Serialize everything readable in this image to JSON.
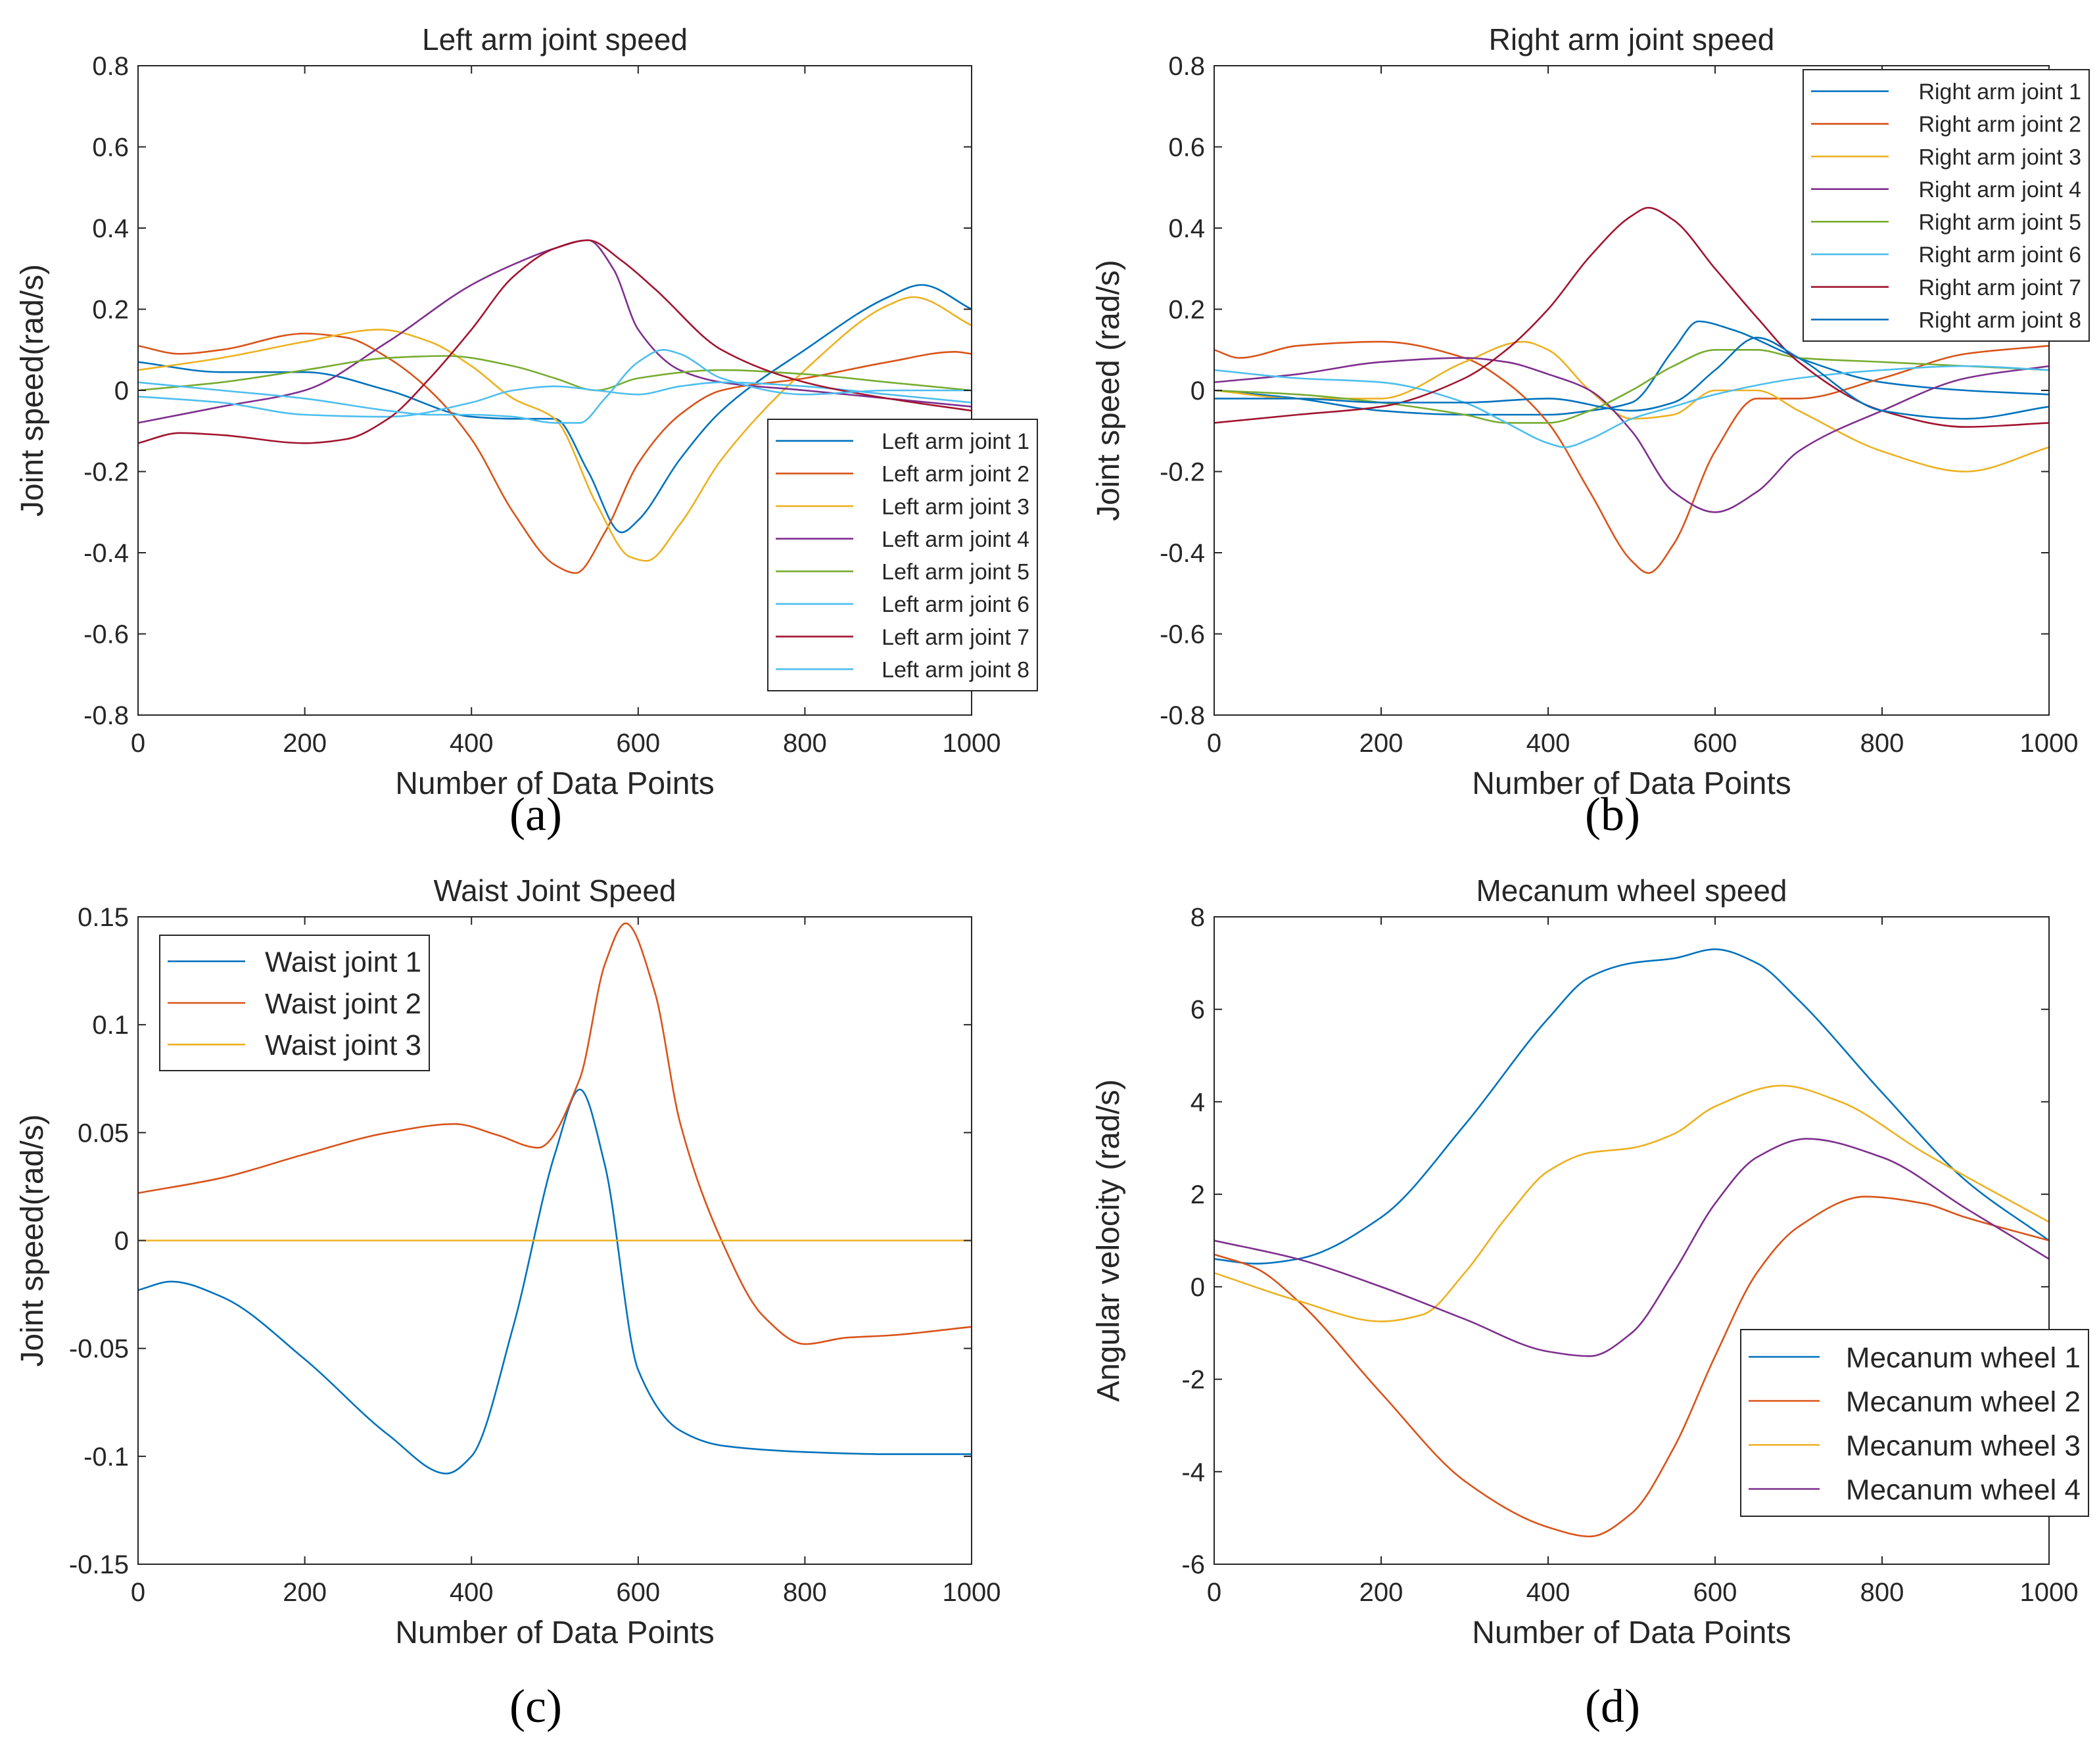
{
  "colors": {
    "c1": "#0072BD",
    "c2": "#D95319",
    "c3": "#EDB120",
    "c4": "#7E2F8E",
    "c5": "#77AC30",
    "c6": "#4DBEEE",
    "c7": "#A2142F",
    "axis": "#262626"
  },
  "chart_data": [
    {
      "id": "a",
      "type": "line",
      "caption": "(a)",
      "title": "Left arm joint speed",
      "xlabel": "Number of Data Points",
      "ylabel": "Joint speed(rad/s)",
      "xlim": [
        0,
        1000
      ],
      "ylim": [
        -0.8,
        0.8
      ],
      "xticks": [
        0,
        200,
        400,
        600,
        800,
        1000
      ],
      "yticks": [
        -0.8,
        -0.6,
        -0.4,
        -0.2,
        0,
        0.2,
        0.4,
        0.6,
        0.8
      ],
      "ytick_labels": [
        "-0.8",
        "-0.6",
        "-0.4",
        "-0.2",
        "0",
        "0.2",
        "0.4",
        "0.6",
        "0.8"
      ],
      "legend_location": "bottom-right",
      "series": [
        {
          "name": "Left arm joint 1",
          "color": "c1",
          "x": [
            0,
            100,
            200,
            300,
            400,
            450,
            500,
            540,
            580,
            600,
            650,
            700,
            800,
            900,
            940,
            1000
          ],
          "y": [
            0.07,
            0.045,
            0.045,
            0.0,
            -0.065,
            -0.07,
            -0.07,
            -0.2,
            -0.35,
            -0.32,
            -0.17,
            -0.05,
            0.1,
            0.23,
            0.26,
            0.2
          ]
        },
        {
          "name": "Left arm joint 2",
          "color": "c2",
          "x": [
            0,
            50,
            100,
            200,
            250,
            300,
            350,
            400,
            450,
            500,
            525,
            560,
            600,
            650,
            700,
            800,
            900,
            980,
            1000
          ],
          "y": [
            0.11,
            0.09,
            0.1,
            0.14,
            0.13,
            0.08,
            0.0,
            -0.12,
            -0.3,
            -0.43,
            -0.45,
            -0.35,
            -0.18,
            -0.06,
            0.0,
            0.03,
            0.07,
            0.095,
            0.09
          ]
        },
        {
          "name": "Left arm joint 3",
          "color": "c3",
          "x": [
            0,
            100,
            200,
            290,
            350,
            400,
            450,
            500,
            550,
            590,
            610,
            650,
            700,
            800,
            900,
            930,
            1000
          ],
          "y": [
            0.05,
            0.08,
            0.12,
            0.15,
            0.12,
            0.06,
            -0.02,
            -0.07,
            -0.28,
            -0.41,
            -0.42,
            -0.33,
            -0.17,
            0.05,
            0.21,
            0.23,
            0.16
          ]
        },
        {
          "name": "Left arm joint 4",
          "color": "c4",
          "x": [
            0,
            100,
            200,
            300,
            400,
            450,
            500,
            540,
            570,
            600,
            650,
            700,
            800,
            900,
            1000
          ],
          "y": [
            -0.08,
            -0.04,
            0.0,
            0.12,
            0.26,
            0.31,
            0.35,
            0.37,
            0.3,
            0.15,
            0.05,
            0.02,
            0.0,
            -0.02,
            -0.04
          ]
        },
        {
          "name": "Left arm joint 5",
          "color": "c5",
          "x": [
            0,
            100,
            200,
            300,
            370,
            450,
            500,
            550,
            600,
            700,
            800,
            900,
            1000
          ],
          "y": [
            0.0,
            0.02,
            0.05,
            0.08,
            0.085,
            0.06,
            0.03,
            0.0,
            0.03,
            0.05,
            0.04,
            0.02,
            0.0
          ]
        },
        {
          "name": "Left arm joint 6",
          "color": "c6",
          "x": [
            0,
            100,
            200,
            300,
            400,
            450,
            500,
            550,
            600,
            650,
            700,
            800,
            900,
            1000
          ],
          "y": [
            -0.015,
            -0.03,
            -0.06,
            -0.065,
            -0.03,
            0.0,
            0.01,
            0.0,
            -0.01,
            0.01,
            0.02,
            0.01,
            -0.01,
            -0.03
          ]
        },
        {
          "name": "Left arm joint 7",
          "color": "c7",
          "x": [
            0,
            50,
            100,
            200,
            250,
            300,
            350,
            400,
            450,
            500,
            540,
            580,
            620,
            700,
            800,
            900,
            1000
          ],
          "y": [
            -0.13,
            -0.105,
            -0.11,
            -0.13,
            -0.12,
            -0.07,
            0.03,
            0.15,
            0.28,
            0.35,
            0.37,
            0.32,
            0.25,
            0.1,
            0.02,
            -0.02,
            -0.05
          ]
        },
        {
          "name": "Left arm joint 8",
          "color": "c6",
          "x": [
            0,
            100,
            200,
            300,
            350,
            400,
            450,
            500,
            530,
            560,
            600,
            630,
            650,
            700,
            800,
            900,
            1000
          ],
          "y": [
            0.02,
            0.0,
            -0.02,
            -0.05,
            -0.06,
            -0.06,
            -0.065,
            -0.08,
            -0.08,
            -0.02,
            0.07,
            0.1,
            0.09,
            0.03,
            -0.01,
            0.0,
            0.0
          ]
        }
      ]
    },
    {
      "id": "b",
      "type": "line",
      "caption": "(b)",
      "title": "Right arm joint speed",
      "xlabel": "Number of Data Points",
      "ylabel": "Joint speed (rad/s)",
      "xlim": [
        0,
        1000
      ],
      "ylim": [
        -0.8,
        0.8
      ],
      "xticks": [
        0,
        200,
        400,
        600,
        800,
        1000
      ],
      "yticks": [
        -0.8,
        -0.6,
        -0.4,
        -0.2,
        0,
        0.2,
        0.4,
        0.6,
        0.8
      ],
      "ytick_labels": [
        "-0.8",
        "-0.6",
        "-0.4",
        "-0.2",
        "0",
        "0.2",
        "0.4",
        "0.6",
        "0.8"
      ],
      "legend_location": "top-right",
      "series": [
        {
          "name": "Right arm joint 1",
          "color": "c1",
          "x": [
            0,
            100,
            200,
            300,
            400,
            450,
            500,
            550,
            580,
            620,
            700,
            800,
            900,
            1000
          ],
          "y": [
            0.0,
            -0.02,
            -0.05,
            -0.06,
            -0.06,
            -0.05,
            -0.03,
            0.1,
            0.17,
            0.15,
            0.08,
            0.02,
            0.0,
            -0.01
          ]
        },
        {
          "name": "Right arm joint 2",
          "color": "c2",
          "x": [
            0,
            30,
            100,
            200,
            300,
            350,
            400,
            450,
            500,
            520,
            550,
            600,
            650,
            700,
            800,
            900,
            1000
          ],
          "y": [
            0.1,
            0.08,
            0.11,
            0.12,
            0.08,
            0.02,
            -0.08,
            -0.25,
            -0.42,
            -0.45,
            -0.38,
            -0.15,
            -0.02,
            -0.02,
            0.03,
            0.09,
            0.11
          ]
        },
        {
          "name": "Right arm joint 3",
          "color": "c3",
          "x": [
            0,
            100,
            200,
            300,
            370,
            400,
            450,
            500,
            550,
            600,
            650,
            700,
            800,
            900,
            1000
          ],
          "y": [
            0.0,
            -0.02,
            -0.02,
            0.07,
            0.12,
            0.1,
            0.0,
            -0.07,
            -0.06,
            0.0,
            0.0,
            -0.05,
            -0.15,
            -0.2,
            -0.14
          ]
        },
        {
          "name": "Right arm joint 4",
          "color": "c4",
          "x": [
            0,
            100,
            200,
            300,
            350,
            400,
            450,
            500,
            550,
            600,
            650,
            700,
            800,
            900,
            1000
          ],
          "y": [
            0.02,
            0.04,
            0.07,
            0.08,
            0.07,
            0.04,
            0.0,
            -0.1,
            -0.25,
            -0.3,
            -0.25,
            -0.15,
            -0.05,
            0.03,
            0.06
          ]
        },
        {
          "name": "Right arm joint 5",
          "color": "c5",
          "x": [
            0,
            100,
            200,
            300,
            350,
            400,
            450,
            500,
            550,
            600,
            650,
            700,
            800,
            900,
            1000
          ],
          "y": [
            0.0,
            -0.01,
            -0.03,
            -0.06,
            -0.08,
            -0.08,
            -0.05,
            0.0,
            0.06,
            0.1,
            0.1,
            0.08,
            0.07,
            0.06,
            0.05
          ]
        },
        {
          "name": "Right arm joint 6",
          "color": "c6",
          "x": [
            0,
            100,
            200,
            300,
            350,
            400,
            420,
            450,
            500,
            550,
            600,
            700,
            800,
            900,
            1000
          ],
          "y": [
            0.05,
            0.03,
            0.02,
            -0.03,
            -0.08,
            -0.13,
            -0.14,
            -0.12,
            -0.07,
            -0.04,
            -0.01,
            0.03,
            0.05,
            0.06,
            0.05
          ]
        },
        {
          "name": "Right arm joint 7",
          "color": "c7",
          "x": [
            0,
            100,
            200,
            300,
            350,
            400,
            450,
            500,
            520,
            550,
            600,
            650,
            700,
            800,
            900,
            1000
          ],
          "y": [
            -0.08,
            -0.06,
            -0.04,
            0.03,
            0.1,
            0.2,
            0.33,
            0.43,
            0.45,
            0.42,
            0.3,
            0.18,
            0.07,
            -0.05,
            -0.09,
            -0.08
          ]
        },
        {
          "name": "Right arm joint 8",
          "color": "c1",
          "x": [
            0,
            100,
            200,
            300,
            400,
            500,
            550,
            600,
            650,
            700,
            800,
            900,
            1000
          ],
          "y": [
            -0.02,
            -0.02,
            -0.03,
            -0.03,
            -0.02,
            -0.05,
            -0.03,
            0.05,
            0.13,
            0.08,
            -0.05,
            -0.07,
            -0.04
          ]
        }
      ]
    },
    {
      "id": "c",
      "type": "line",
      "caption": "(c)",
      "title": "Waist Joint Speed",
      "xlabel": "Number of Data Points",
      "ylabel": "Joint speed(rad/s)",
      "xlim": [
        0,
        1000
      ],
      "ylim": [
        -0.15,
        0.15
      ],
      "xticks": [
        0,
        200,
        400,
        600,
        800,
        1000
      ],
      "yticks": [
        -0.15,
        -0.1,
        -0.05,
        0,
        0.05,
        0.1,
        0.15
      ],
      "ytick_labels": [
        "-0.15",
        "-0.1",
        "-0.05",
        "0",
        "0.05",
        "0.1",
        "0.15"
      ],
      "legend_location": "top-left",
      "series": [
        {
          "name": "Waist joint 1",
          "color": "c1",
          "x": [
            0,
            40,
            100,
            200,
            300,
            370,
            400,
            450,
            500,
            530,
            560,
            600,
            650,
            700,
            800,
            900,
            1000
          ],
          "y": [
            -0.023,
            -0.019,
            -0.026,
            -0.055,
            -0.09,
            -0.108,
            -0.1,
            -0.04,
            0.04,
            0.07,
            0.035,
            -0.06,
            -0.088,
            -0.095,
            -0.098,
            -0.099,
            -0.099
          ]
        },
        {
          "name": "Waist joint 2",
          "color": "c2",
          "x": [
            0,
            100,
            200,
            300,
            380,
            430,
            480,
            530,
            560,
            585,
            620,
            650,
            700,
            750,
            800,
            850,
            900,
            1000
          ],
          "y": [
            0.022,
            0.029,
            0.04,
            0.05,
            0.054,
            0.049,
            0.043,
            0.075,
            0.128,
            0.147,
            0.115,
            0.055,
            0.0,
            -0.035,
            -0.048,
            -0.045,
            -0.044,
            -0.04
          ]
        },
        {
          "name": "Waist joint 3",
          "color": "c3",
          "x": [
            0,
            1000
          ],
          "y": [
            0.0,
            0.0
          ]
        }
      ]
    },
    {
      "id": "d",
      "type": "line",
      "caption": "(d)",
      "title": "Mecanum wheel speed",
      "xlabel": "Number of Data Points",
      "ylabel": "Angular velocity (rad/s)",
      "xlim": [
        0,
        1000
      ],
      "ylim": [
        -6,
        8
      ],
      "xticks": [
        0,
        200,
        400,
        600,
        800,
        1000
      ],
      "yticks": [
        -6,
        -4,
        -2,
        0,
        2,
        4,
        6,
        8
      ],
      "ytick_labels": [
        "-6",
        "-4",
        "-2",
        "0",
        "2",
        "4",
        "6",
        "8"
      ],
      "legend_location": "bottom-right",
      "series": [
        {
          "name": "Mecanum wheel 1",
          "color": "c1",
          "x": [
            0,
            50,
            100,
            200,
            300,
            400,
            450,
            500,
            550,
            600,
            650,
            700,
            800,
            900,
            1000
          ],
          "y": [
            0.6,
            0.5,
            0.6,
            1.5,
            3.5,
            5.8,
            6.7,
            7.0,
            7.1,
            7.3,
            7.0,
            6.2,
            4.2,
            2.3,
            1.0
          ]
        },
        {
          "name": "Mecanum wheel 2",
          "color": "c2",
          "x": [
            0,
            50,
            100,
            200,
            300,
            400,
            450,
            500,
            550,
            600,
            650,
            700,
            780,
            850,
            900,
            1000
          ],
          "y": [
            0.7,
            0.4,
            -0.3,
            -2.3,
            -4.2,
            -5.2,
            -5.4,
            -4.9,
            -3.5,
            -1.5,
            0.3,
            1.3,
            1.95,
            1.8,
            1.5,
            1.0
          ]
        },
        {
          "name": "Mecanum wheel 3",
          "color": "c3",
          "x": [
            0,
            100,
            200,
            250,
            300,
            350,
            400,
            450,
            500,
            550,
            600,
            680,
            750,
            850,
            1000
          ],
          "y": [
            0.3,
            -0.3,
            -0.75,
            -0.6,
            0.3,
            1.5,
            2.5,
            2.9,
            3.0,
            3.3,
            3.9,
            4.35,
            4.0,
            2.9,
            1.4
          ]
        },
        {
          "name": "Mecanum wheel 4",
          "color": "c4",
          "x": [
            0,
            100,
            200,
            300,
            400,
            450,
            500,
            550,
            600,
            650,
            710,
            800,
            900,
            1000
          ],
          "y": [
            1.0,
            0.6,
            0.0,
            -0.7,
            -1.4,
            -1.5,
            -1.0,
            0.3,
            1.8,
            2.8,
            3.2,
            2.8,
            1.7,
            0.6
          ]
        }
      ]
    }
  ]
}
